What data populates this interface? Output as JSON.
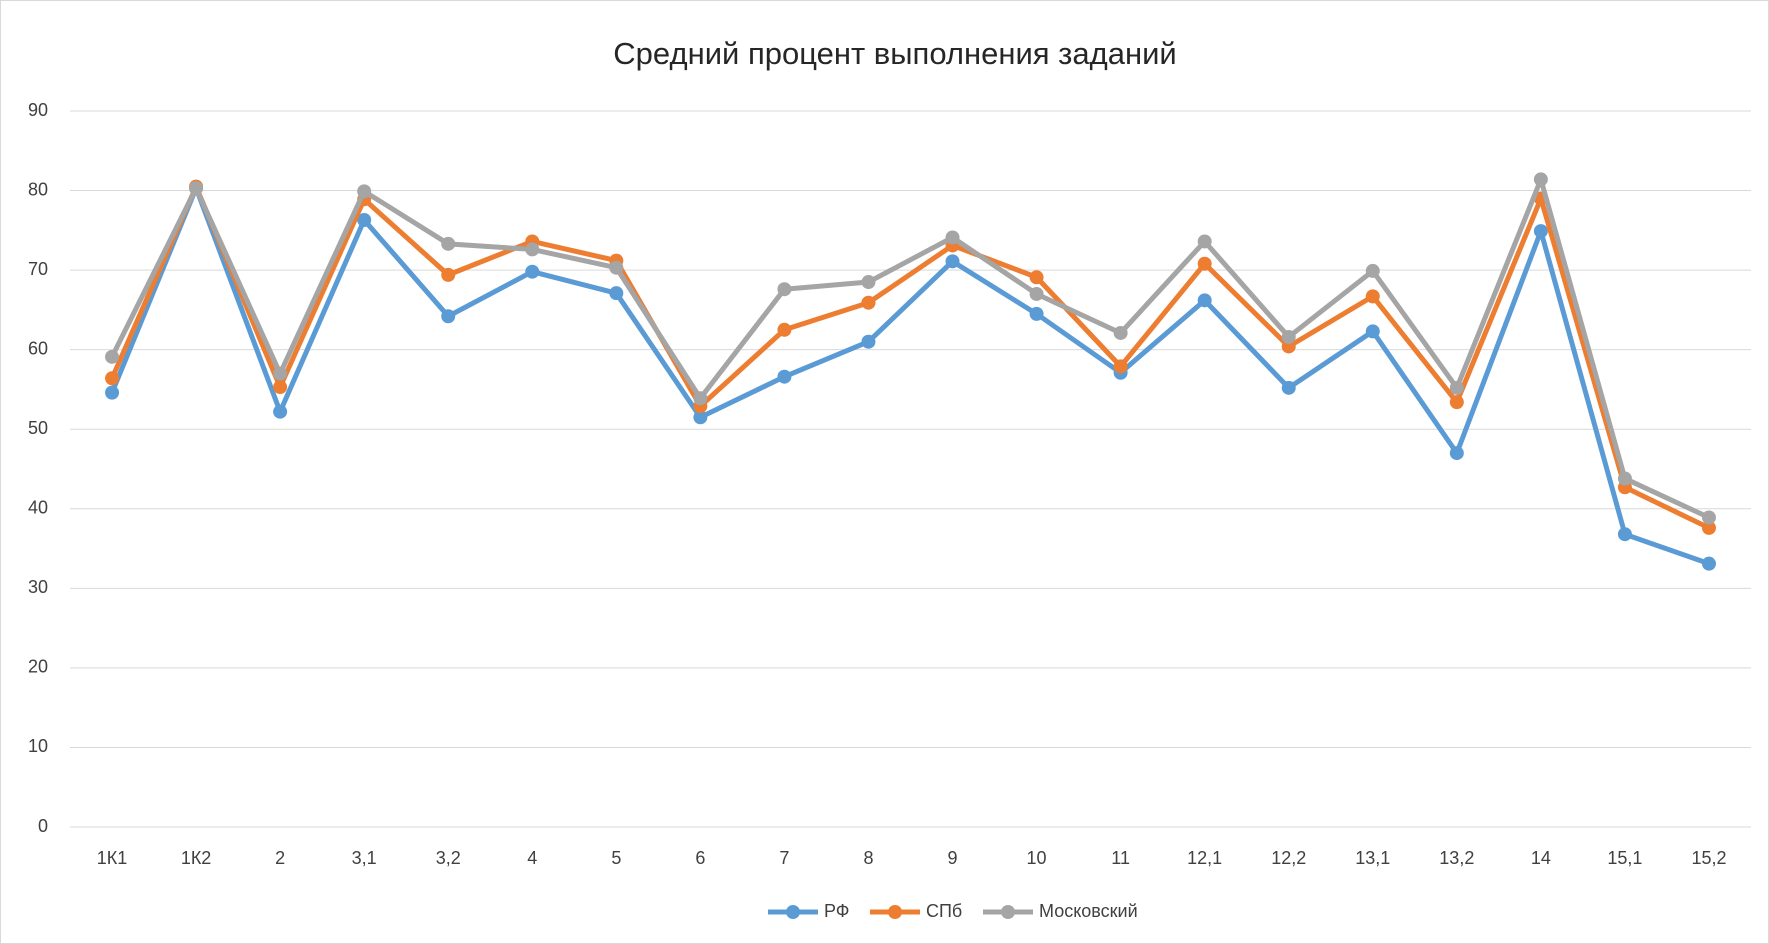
{
  "chart_data": {
    "type": "line",
    "title": "Средний процент выполнения заданий",
    "categories": [
      "1К1",
      "1К2",
      "2",
      "3,1",
      "3,2",
      "4",
      "5",
      "6",
      "7",
      "8",
      "9",
      "10",
      "11",
      "12,1",
      "12,2",
      "13,1",
      "13,2",
      "14",
      "15,1",
      "15,2"
    ],
    "series": [
      {
        "name": "РФ",
        "color": "#5b9bd5",
        "values": [
          54.6,
          80.3,
          52.2,
          76.3,
          64.2,
          69.8,
          67.1,
          51.5,
          56.6,
          61.0,
          71.1,
          64.5,
          57.1,
          66.2,
          55.2,
          62.3,
          47.0,
          74.9,
          36.8,
          33.1
        ]
      },
      {
        "name": "СПб",
        "color": "#ed7d31",
        "values": [
          56.4,
          80.5,
          55.3,
          78.9,
          69.4,
          73.6,
          71.2,
          52.9,
          62.5,
          65.9,
          73.1,
          69.1,
          57.9,
          70.8,
          60.4,
          66.7,
          53.4,
          79.0,
          42.7,
          37.6
        ]
      },
      {
        "name": "Московский",
        "color": "#a5a5a5",
        "values": [
          59.1,
          80.3,
          57.0,
          79.9,
          73.3,
          72.6,
          70.3,
          53.9,
          67.6,
          68.5,
          74.1,
          67.0,
          62.1,
          73.6,
          61.6,
          69.9,
          55.2,
          81.4,
          43.8,
          38.9
        ]
      }
    ],
    "ylim": [
      0,
      90
    ],
    "yticks": [
      0,
      10,
      20,
      30,
      40,
      50,
      60,
      70,
      80,
      90
    ],
    "grid": true,
    "legend": "bottom"
  }
}
